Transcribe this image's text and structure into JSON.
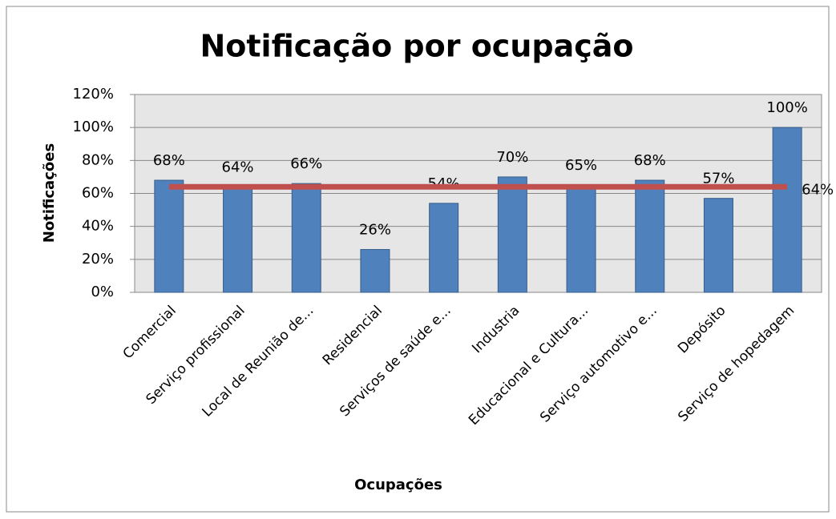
{
  "chart_data": {
    "type": "bar",
    "title": "Notificação por ocupação",
    "xlabel": "Ocupações",
    "ylabel": "Notificações",
    "categories": [
      "Comercial",
      "Serviço profissional",
      "Local de Reunião de...",
      "Residencial",
      "Serviços de saúde e...",
      "Industria",
      "Educacional e Cultura...",
      "Serviço automotivo e...",
      "Depósito",
      "Serviço de hopedagem"
    ],
    "series": [
      {
        "type": "bar",
        "color": "#4f81bd",
        "values": [
          68,
          64,
          66,
          26,
          54,
          70,
          65,
          68,
          57,
          100
        ],
        "value_labels": [
          "68%",
          "64%",
          "66%",
          "26%",
          "54%",
          "70%",
          "65%",
          "68%",
          "57%",
          "100%"
        ]
      },
      {
        "type": "line",
        "color": "#c0504d",
        "values": [
          64,
          64,
          64,
          64,
          64,
          64,
          64,
          64,
          64,
          64
        ],
        "value_labels": [
          null,
          null,
          null,
          null,
          null,
          null,
          null,
          null,
          null,
          "64%"
        ]
      }
    ],
    "ylim": [
      0,
      120
    ],
    "yticks": [
      {
        "value": 0,
        "label": "0%"
      },
      {
        "value": 20,
        "label": "20%"
      },
      {
        "value": 40,
        "label": "40%"
      },
      {
        "value": 60,
        "label": "60%"
      },
      {
        "value": 80,
        "label": "80%"
      },
      {
        "value": 100,
        "label": "100%"
      },
      {
        "value": 120,
        "label": "120%"
      }
    ],
    "grid": true
  }
}
